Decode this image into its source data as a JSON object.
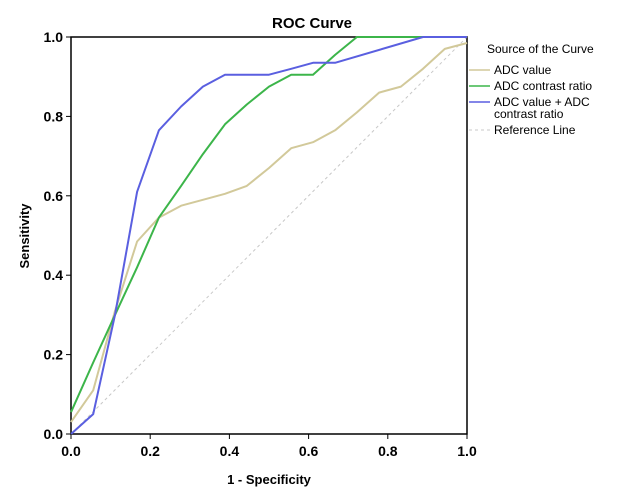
{
  "chart_data": {
    "type": "line",
    "title": "ROC Curve",
    "xlabel": "1 - Specificity",
    "ylabel": "Sensitivity",
    "xlim": [
      0,
      1
    ],
    "ylim": [
      0,
      1
    ],
    "xticks": [
      "0.0",
      "0.2",
      "0.4",
      "0.6",
      "0.8",
      "1.0"
    ],
    "yticks": [
      "0.0",
      "0.2",
      "0.4",
      "0.6",
      "0.8",
      "1.0"
    ],
    "grid": false,
    "legend": {
      "title": "Source of the Curve",
      "position": "right",
      "entries": [
        {
          "key": "adc_value",
          "lines": [
            "ADC value"
          ]
        },
        {
          "key": "adc_contrast_ratio",
          "lines": [
            "ADC contrast ratio"
          ]
        },
        {
          "key": "combined",
          "lines": [
            "ADC value + ADC",
            "contrast ratio"
          ]
        },
        {
          "key": "reference",
          "lines": [
            "Reference Line"
          ]
        }
      ]
    },
    "series": [
      {
        "key": "adc_value",
        "name": "ADC value",
        "color": "#d2c99a",
        "points": [
          [
            0,
            0.03
          ],
          [
            0.056,
            0.11
          ],
          [
            0.111,
            0.31
          ],
          [
            0.167,
            0.485
          ],
          [
            0.222,
            0.545
          ],
          [
            0.278,
            0.575
          ],
          [
            0.333,
            0.59
          ],
          [
            0.389,
            0.605
          ],
          [
            0.444,
            0.625
          ],
          [
            0.5,
            0.67
          ],
          [
            0.556,
            0.72
          ],
          [
            0.611,
            0.735
          ],
          [
            0.667,
            0.765
          ],
          [
            0.722,
            0.81
          ],
          [
            0.778,
            0.86
          ],
          [
            0.833,
            0.875
          ],
          [
            0.889,
            0.92
          ],
          [
            0.944,
            0.97
          ],
          [
            1,
            0.985
          ]
        ]
      },
      {
        "key": "adc_contrast_ratio",
        "name": "ADC contrast ratio",
        "color": "#3cb54a",
        "points": [
          [
            0,
            0.055
          ],
          [
            0.056,
            0.18
          ],
          [
            0.111,
            0.3
          ],
          [
            0.167,
            0.42
          ],
          [
            0.222,
            0.545
          ],
          [
            0.278,
            0.625
          ],
          [
            0.333,
            0.705
          ],
          [
            0.389,
            0.78
          ],
          [
            0.444,
            0.83
          ],
          [
            0.5,
            0.875
          ],
          [
            0.556,
            0.905
          ],
          [
            0.611,
            0.905
          ],
          [
            0.667,
            0.955
          ],
          [
            0.722,
            1.0
          ],
          [
            1,
            1.0
          ]
        ]
      },
      {
        "key": "combined",
        "name": "ADC value + ADC contrast ratio",
        "color": "#5a5fe0",
        "points": [
          [
            0,
            0.0
          ],
          [
            0.056,
            0.05
          ],
          [
            0.111,
            0.3
          ],
          [
            0.167,
            0.61
          ],
          [
            0.222,
            0.765
          ],
          [
            0.278,
            0.825
          ],
          [
            0.333,
            0.875
          ],
          [
            0.389,
            0.905
          ],
          [
            0.5,
            0.905
          ],
          [
            0.556,
            0.92
          ],
          [
            0.611,
            0.935
          ],
          [
            0.667,
            0.935
          ],
          [
            0.889,
            1.0
          ],
          [
            1,
            1.0
          ]
        ]
      },
      {
        "key": "reference",
        "name": "Reference Line",
        "color": "#c8c8c8",
        "dashed": true,
        "points": [
          [
            0,
            0
          ],
          [
            1,
            1
          ]
        ]
      }
    ]
  }
}
